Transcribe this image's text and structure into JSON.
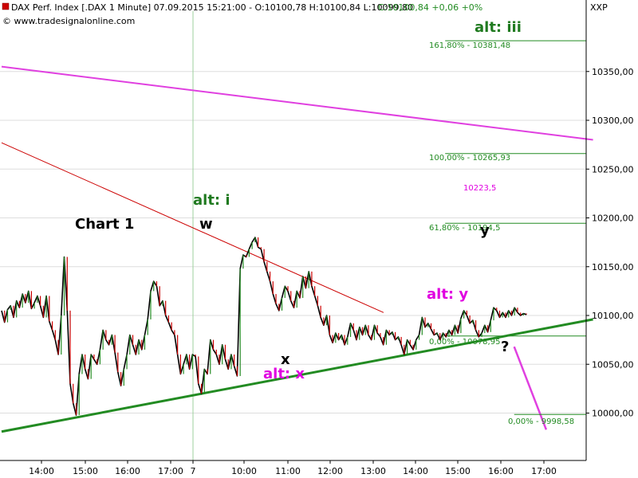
{
  "header": {
    "title": "DAX Perf. Index [.DAX  1 Minute] 07.09.2015 15:21:00 - O:10100,78 H:10100,84 L:10099,80",
    "change": "C:10100,84 +0,06 +0%",
    "watermark": "© www.tradesignalonline.com",
    "symbol_code": "XXP"
  },
  "colors": {
    "price": "#000000",
    "trend_magenta": "#e040e0",
    "trend_red": "#cc0000",
    "trend_green": "#228b22",
    "fib_green": "#228b22",
    "label_green": "#1f7a1f",
    "label_magenta": "#e000e0",
    "grid": "#dddddd",
    "up_candle": "#228b22",
    "down_candle": "#cc0000"
  },
  "chart_data": {
    "type": "line",
    "title": "Chart 1",
    "xlabel": "",
    "ylabel": "",
    "ylim": [
      9980,
      10415
    ],
    "y_ticks": [
      10000,
      10050,
      10100,
      10150,
      10200,
      10250,
      10300,
      10350
    ],
    "y_tick_labels": [
      "10000,00",
      "10050,00",
      "10100,00",
      "10150,00",
      "10200,00",
      "10250,00",
      "10300,00",
      "10350,00"
    ],
    "x_tick_labels": [
      "14:00",
      "15:00",
      "16:00",
      "17:00",
      "7",
      "10:00",
      "11:00",
      "12:00",
      "13:00",
      "14:00",
      "15:00",
      "16:00",
      "17:00"
    ],
    "series": [
      {
        "values": [
          10105,
          10093,
          10106,
          10110,
          10098,
          10115,
          10108,
          10122,
          10113,
          10125,
          10107,
          10113,
          10120,
          10110,
          10098,
          10120,
          10094,
          10085,
          10075,
          10060,
          10100,
          10160,
          10105,
          10030,
          10010,
          9998,
          10040,
          10060,
          10045,
          10035,
          10060,
          10055,
          10050,
          10065,
          10085,
          10075,
          10070,
          10080,
          10062,
          10042,
          10028,
          10045,
          10060,
          10080,
          10070,
          10060,
          10075,
          10065,
          10080,
          10096,
          10125,
          10135,
          10130,
          10110,
          10115,
          10100,
          10093,
          10085,
          10080,
          10060,
          10040,
          10050,
          10060,
          10045,
          10060,
          10058,
          10030,
          10020,
          10045,
          10040,
          10075,
          10065,
          10060,
          10050,
          10070,
          10055,
          10045,
          10060,
          10048,
          10038,
          10148,
          10162,
          10160,
          10168,
          10175,
          10180,
          10170,
          10168,
          10155,
          10145,
          10135,
          10122,
          10112,
          10105,
          10118,
          10130,
          10125,
          10115,
          10108,
          10125,
          10118,
          10140,
          10128,
          10145,
          10130,
          10120,
          10110,
          10098,
          10090,
          10100,
          10080,
          10072,
          10082,
          10075,
          10080,
          10070,
          10078,
          10092,
          10085,
          10075,
          10088,
          10080,
          10090,
          10080,
          10075,
          10090,
          10082,
          10078,
          10070,
          10085,
          10080,
          10083,
          10075,
          10078,
          10070,
          10060,
          10075,
          10070,
          10065,
          10075,
          10080,
          10098,
          10088,
          10092,
          10086,
          10080,
          10082,
          10075,
          10082,
          10078,
          10085,
          10080,
          10090,
          10082,
          10097,
          10105,
          10100,
          10092,
          10095,
          10085,
          10078,
          10082,
          10090,
          10083,
          10095,
          10108,
          10105,
          10098,
          10103,
          10098,
          10105,
          10100,
          10108,
          10103,
          10100,
          10102,
          10101
        ],
        "x_start": 0,
        "x_end": 213
      }
    ],
    "trendlines": [
      {
        "name": "magenta",
        "x1": 0,
        "y1": 10355,
        "x2": 240,
        "y2": 10280
      },
      {
        "name": "red",
        "x1": 0,
        "y1": 10277,
        "x2": 155,
        "y2": 10103
      },
      {
        "name": "green",
        "x1": 0,
        "y1": 9981,
        "x2": 240,
        "y2": 10096
      },
      {
        "name": "projection",
        "x1": 208,
        "y1": 10068,
        "x2": 221,
        "y2": 9983
      }
    ],
    "fib_levels": [
      {
        "label": "161,80% - 10381,48",
        "value": 10381.48,
        "x_start": 180
      },
      {
        "label": "100,00% - 10265,93",
        "value": 10265.93,
        "x_start": 180
      },
      {
        "label": "61,80% - 10194,5",
        "value": 10194.5,
        "x_start": 180
      },
      {
        "label": "0,00% - 10078,95",
        "value": 10078.95,
        "x_start": 180
      },
      {
        "label": "0,00% - 9998,58",
        "value": 9998.58,
        "x_start": 208
      }
    ],
    "reference_value": "10223,5",
    "annotations": [
      {
        "text": "alt: iii",
        "color": "green",
        "size": 18
      },
      {
        "text": "alt: i",
        "color": "green",
        "size": 18
      },
      {
        "text": "w",
        "color": "black",
        "size": 18
      },
      {
        "text": "Chart 1",
        "color": "black",
        "size": 18
      },
      {
        "text": "alt: y",
        "color": "magenta",
        "size": 18
      },
      {
        "text": "y",
        "color": "black",
        "size": 18
      },
      {
        "text": "x",
        "color": "black",
        "size": 18
      },
      {
        "text": "alt: x",
        "color": "magenta",
        "size": 18
      },
      {
        "text": "?",
        "color": "black",
        "size": 18
      }
    ]
  }
}
